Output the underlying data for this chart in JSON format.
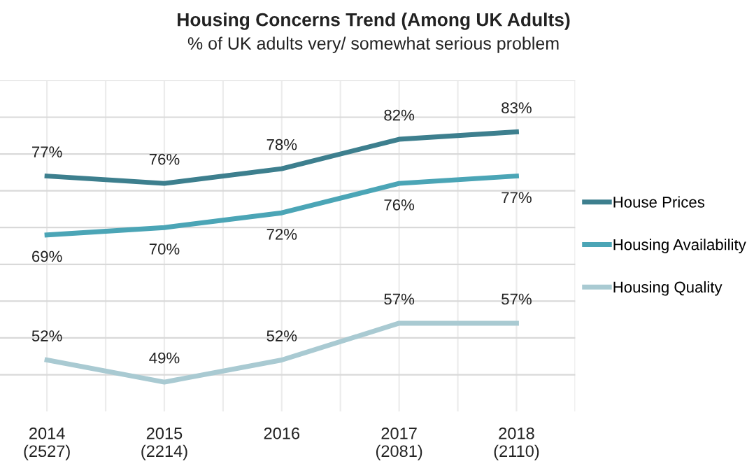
{
  "chart_data": {
    "type": "line",
    "title": "Housing Concerns Trend (Among UK Adults)",
    "subtitle": "% of UK adults very/ somewhat serious problem",
    "categories": [
      "2014\n(2527)",
      "2015\n(2214)",
      "2016",
      "2017\n(2081)",
      "2018\n(2110)"
    ],
    "series": [
      {
        "name": "House Prices",
        "color": "#3d7f8e",
        "values": [
          77,
          76,
          78,
          82,
          83
        ],
        "value_labels": [
          "77%",
          "76%",
          "78%",
          "82%",
          "83%"
        ]
      },
      {
        "name": "Housing Availability",
        "color": "#4ba5b6",
        "values": [
          69,
          70,
          72,
          76,
          77
        ],
        "value_labels": [
          "69%",
          "70%",
          "72%",
          "76%",
          "77%"
        ]
      },
      {
        "name": "Housing Quality",
        "color": "#a9cad2",
        "values": [
          52,
          49,
          52,
          57,
          57
        ],
        "value_labels": [
          "52%",
          "49%",
          "52%",
          "57%",
          "57%"
        ]
      }
    ],
    "ylim": [
      45,
      90
    ],
    "yticks": [
      {
        "value": 50,
        "label": null
      },
      {
        "value": 55,
        "label": null
      },
      {
        "value": 60,
        "label": null
      },
      {
        "value": 65,
        "label": null
      },
      {
        "value": 70,
        "label": null
      },
      {
        "value": 75,
        "label": null
      },
      {
        "value": 80,
        "label": null
      },
      {
        "value": 85,
        "label": null
      },
      {
        "value": 90,
        "label": null
      }
    ],
    "grid": true,
    "legend": "right",
    "tick_labels": "x",
    "marker": "none",
    "line_style": "solid"
  }
}
